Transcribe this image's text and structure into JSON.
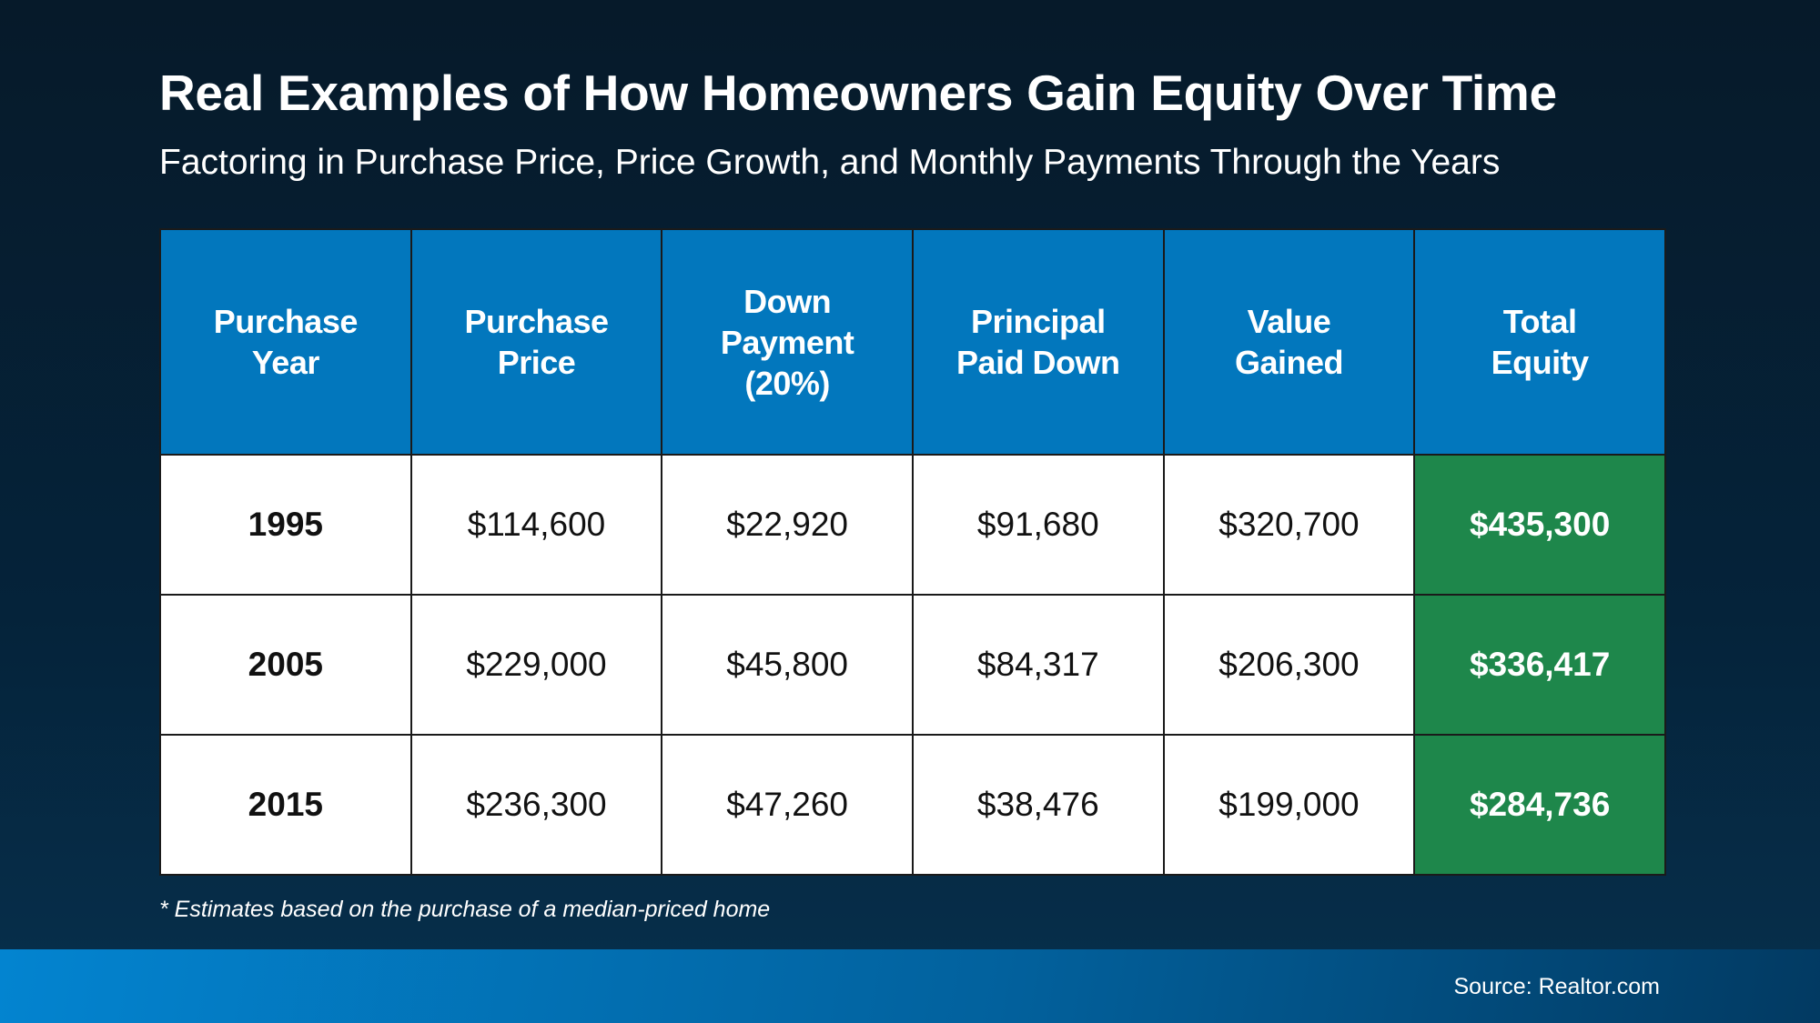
{
  "chart_data": {
    "type": "table",
    "title": "Real Examples of How Homeowners Gain Equity Over Time",
    "subtitle": "Factoring in Purchase Price, Price Growth, and Monthly Payments Through the Years",
    "columns": [
      "Purchase Year",
      "Purchase Price",
      "Down Payment (20%)",
      "Principal Paid Down",
      "Value Gained",
      "Total Equity"
    ],
    "rows": [
      [
        "1995",
        "$114,600",
        "$22,920",
        "$91,680",
        "$320,700",
        "$435,300"
      ],
      [
        "2005",
        "$229,000",
        "$45,800",
        "$84,317",
        "$206,300",
        "$336,417"
      ],
      [
        "2015",
        "$236,300",
        "$47,260",
        "$38,476",
        "$199,000",
        "$284,736"
      ]
    ],
    "footnote": "* Estimates based on the purchase of a median-priced home",
    "source": "Source: Realtor.com",
    "colors": {
      "header": "#0277bd",
      "total_equity": "#1e874b",
      "background": "#05233a"
    }
  }
}
